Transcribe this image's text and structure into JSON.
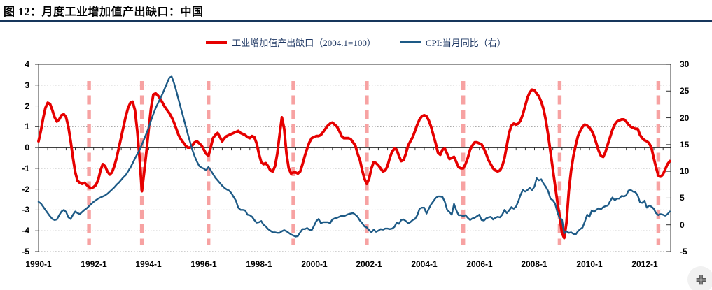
{
  "figure": {
    "title": "图 12：月度工业增加值产出缺口：中国"
  },
  "legend": {
    "items": [
      {
        "label": "工业增加值产出缺口（2004.1=100）",
        "color": "#e60000",
        "thickness": 4
      },
      {
        "label": "CPI:当月同比（右）",
        "color": "#1d5a86",
        "thickness": 2.5
      }
    ]
  },
  "colors": {
    "title_rule": "#16365c",
    "red_series": "#e60000",
    "blue_series": "#1d5a86",
    "event_dash": "#f7a2a2",
    "grid": "#a0a0a0",
    "plot_border": "#595959",
    "zero_line": "#000000"
  },
  "controls": {
    "resize_button_icon": "compress-icon"
  },
  "chart_data": {
    "type": "line",
    "title": "图 12：月度工业增加值产出缺口：中国",
    "frequency": "monthly",
    "start": "1990-01",
    "end": "2012-12",
    "x_axis": {
      "tick_labels": [
        "1990-1",
        "1992-1",
        "1994-1",
        "1996-1",
        "1998-1",
        "2000-1",
        "2002-1",
        "2004-1",
        "2006-1",
        "2008-1",
        "2010-1",
        "2012-1"
      ]
    },
    "left_axis": {
      "range": [
        -5,
        4
      ],
      "tick_step": 1,
      "ticks": [
        "4",
        "3",
        "2",
        "1",
        "0",
        "-1",
        "-2",
        "-3",
        "-4",
        "-5"
      ],
      "series": "工业增加值产出缺口（2004.1=100）"
    },
    "right_axis": {
      "range": [
        -5,
        30
      ],
      "tick_step": 5,
      "ticks": [
        "30",
        "25",
        "20",
        "15",
        "10",
        "5",
        "0",
        "-5"
      ],
      "series": "CPI:当月同比（右）"
    },
    "grid": "horizontal-dotted",
    "legend_position": "top-center",
    "event_lines": {
      "style": "dashed-vertical",
      "color": "#f7a2a2",
      "dates": [
        "1991-11",
        "1993-10",
        "1996-03",
        "1999-04",
        "2001-12",
        "2005-06",
        "2008-12",
        "2012-07"
      ]
    },
    "series": [
      {
        "name": "工业增加值产出缺口（2004.1=100）",
        "axis": "left",
        "color": "#e60000",
        "start": "1990-01",
        "values": [
          0.3,
          0.8,
          1.4,
          1.9,
          2.15,
          2.1,
          1.8,
          1.45,
          1.25,
          1.35,
          1.55,
          1.6,
          1.45,
          1.0,
          0.3,
          -0.5,
          -1.2,
          -1.6,
          -1.7,
          -1.75,
          -1.7,
          -1.8,
          -1.9,
          -1.95,
          -1.9,
          -1.8,
          -1.55,
          -1.1,
          -0.8,
          -0.9,
          -1.15,
          -1.3,
          -1.2,
          -0.9,
          -0.5,
          0.0,
          0.5,
          1.0,
          1.5,
          1.9,
          2.15,
          2.2,
          1.8,
          0.8,
          -0.5,
          -2.1,
          -1.2,
          -0.2,
          0.9,
          1.9,
          2.55,
          2.6,
          2.5,
          2.35,
          2.15,
          1.95,
          1.8,
          1.65,
          1.45,
          1.2,
          0.9,
          0.6,
          0.4,
          0.25,
          0.1,
          0.0,
          0.0,
          0.1,
          0.25,
          0.3,
          0.2,
          0.1,
          -0.1,
          -0.3,
          -0.4,
          0.0,
          0.45,
          0.6,
          0.7,
          0.5,
          0.3,
          0.45,
          0.55,
          0.6,
          0.65,
          0.7,
          0.75,
          0.8,
          0.7,
          0.65,
          0.6,
          0.5,
          0.45,
          0.55,
          0.5,
          0.2,
          -0.3,
          -0.7,
          -0.8,
          -0.75,
          -0.9,
          -1.1,
          -1.15,
          -0.9,
          -0.3,
          0.6,
          1.45,
          0.9,
          -0.3,
          -1.0,
          -1.25,
          -1.2,
          -1.2,
          -1.25,
          -1.15,
          -0.8,
          -0.4,
          -0.05,
          0.25,
          0.45,
          0.5,
          0.55,
          0.55,
          0.6,
          0.75,
          0.9,
          1.05,
          1.15,
          1.2,
          1.1,
          1.0,
          0.8,
          0.55,
          0.45,
          0.45,
          0.45,
          0.4,
          0.25,
          0.1,
          -0.3,
          -0.6,
          -1.1,
          -1.5,
          -1.75,
          -1.5,
          -1.0,
          -0.7,
          -0.75,
          -0.85,
          -1.0,
          -1.15,
          -1.1,
          -0.9,
          -0.5,
          -0.2,
          -0.05,
          -0.1,
          -0.4,
          -0.65,
          -0.6,
          -0.3,
          0.1,
          0.3,
          0.5,
          0.8,
          1.1,
          1.35,
          1.5,
          1.55,
          1.5,
          1.3,
          1.0,
          0.6,
          0.2,
          -0.25,
          -0.35,
          -0.1,
          -0.05,
          -0.3,
          -0.55,
          -0.5,
          -0.45,
          -0.7,
          -0.95,
          -1.0,
          -1.0,
          -0.8,
          -0.5,
          -0.1,
          0.1,
          0.25,
          0.25,
          0.2,
          0.15,
          -0.05,
          -0.3,
          -0.6,
          -0.8,
          -1.0,
          -1.1,
          -1.15,
          -1.1,
          -0.9,
          -0.5,
          0.1,
          0.7,
          1.05,
          1.15,
          1.1,
          1.15,
          1.3,
          1.6,
          2.0,
          2.4,
          2.65,
          2.78,
          2.75,
          2.6,
          2.45,
          2.2,
          1.85,
          1.3,
          0.6,
          -0.2,
          -1.0,
          -1.8,
          -2.6,
          -3.3,
          -4.1,
          -4.35,
          -3.6,
          -2.1,
          -1.1,
          -0.4,
          0.1,
          0.55,
          0.8,
          1.0,
          1.1,
          1.05,
          0.95,
          0.8,
          0.55,
          0.2,
          -0.15,
          -0.4,
          -0.45,
          -0.2,
          0.15,
          0.5,
          0.85,
          1.1,
          1.25,
          1.3,
          1.35,
          1.35,
          1.25,
          1.1,
          1.0,
          0.95,
          0.9,
          0.9,
          0.6,
          0.45,
          0.35,
          0.3,
          0.2,
          0.0,
          -0.5,
          -0.95,
          -1.35,
          -1.4,
          -1.3,
          -1.05,
          -0.8,
          -0.65
        ]
      },
      {
        "name": "CPI:当月同比（右）",
        "axis": "right",
        "color": "#1d5a86",
        "start": "1990-01",
        "values": [
          4.3,
          4.0,
          3.4,
          2.8,
          2.2,
          1.6,
          1.1,
          0.9,
          1.0,
          1.8,
          2.5,
          2.8,
          2.4,
          1.4,
          1.1,
          1.9,
          2.5,
          2.2,
          2.0,
          2.4,
          2.8,
          3.1,
          3.5,
          3.9,
          4.3,
          4.6,
          4.9,
          5.1,
          5.3,
          5.5,
          5.8,
          6.2,
          6.6,
          7.0,
          7.5,
          7.9,
          8.4,
          8.9,
          9.3,
          10.0,
          10.7,
          11.5,
          12.4,
          13.2,
          14.0,
          15.0,
          16.0,
          17.1,
          18.2,
          19.5,
          20.7,
          21.8,
          22.7,
          23.6,
          24.5,
          25.5,
          26.5,
          27.5,
          27.7,
          26.5,
          25.0,
          23.4,
          21.8,
          20.2,
          18.6,
          17.0,
          15.5,
          14.0,
          12.8,
          11.8,
          11.0,
          10.7,
          10.5,
          10.2,
          10.8,
          10.2,
          9.5,
          8.8,
          8.3,
          7.8,
          7.3,
          6.9,
          6.6,
          6.4,
          5.9,
          5.2,
          4.5,
          3.2,
          2.8,
          2.8,
          2.7,
          1.9,
          1.8,
          1.5,
          0.9,
          0.4,
          0.5,
          0.7,
          0.0,
          -0.3,
          -0.8,
          -1.1,
          -1.4,
          -1.4,
          -1.5,
          -1.5,
          -1.2,
          -1.0,
          -1.2,
          -1.5,
          -1.8,
          -2.0,
          -2.2,
          -2.1,
          -1.4,
          -0.8,
          -0.8,
          -0.6,
          -0.9,
          -1.0,
          -0.2,
          0.7,
          1.1,
          0.3,
          0.5,
          0.5,
          0.5,
          0.3,
          1.0,
          1.2,
          1.3,
          1.5,
          1.7,
          1.6,
          1.8,
          2.0,
          2.1,
          2.2,
          1.9,
          1.5,
          0.8,
          0.3,
          -0.3,
          -0.5,
          -1.0,
          -1.4,
          -0.9,
          -1.3,
          -1.1,
          -0.8,
          -0.9,
          -0.7,
          -0.7,
          -0.8,
          -0.7,
          -0.4,
          0.4,
          0.2,
          0.9,
          1.0,
          0.7,
          0.3,
          0.5,
          0.9,
          1.1,
          1.8,
          3.0,
          3.2,
          3.2,
          2.1,
          3.0,
          3.8,
          4.4,
          5.0,
          5.3,
          5.3,
          5.2,
          4.3,
          2.8,
          2.4,
          1.9,
          3.9,
          2.7,
          1.8,
          1.8,
          1.6,
          1.8,
          1.3,
          0.9,
          1.2,
          1.3,
          1.6,
          1.9,
          0.9,
          0.8,
          1.2,
          1.4,
          1.5,
          1.0,
          1.3,
          1.5,
          1.4,
          1.9,
          2.8,
          2.2,
          2.7,
          3.3,
          3.0,
          3.4,
          4.4,
          5.6,
          6.5,
          6.2,
          6.5,
          6.9,
          6.5,
          7.1,
          8.7,
          8.3,
          8.5,
          7.7,
          7.1,
          6.3,
          4.9,
          4.6,
          4.0,
          2.4,
          1.2,
          1.0,
          -1.6,
          -1.2,
          -1.5,
          -1.4,
          -1.7,
          -1.8,
          -1.2,
          -0.8,
          -0.5,
          0.6,
          1.9,
          1.5,
          2.7,
          2.4,
          2.8,
          3.1,
          2.9,
          3.3,
          3.5,
          3.6,
          4.4,
          5.1,
          4.6,
          4.9,
          4.9,
          5.4,
          5.3,
          5.5,
          6.4,
          6.5,
          6.2,
          6.1,
          5.5,
          4.2,
          4.1,
          4.5,
          3.2,
          3.6,
          3.4,
          3.0,
          2.2,
          1.8,
          2.0,
          1.9,
          1.7,
          2.0,
          2.5
        ]
      }
    ]
  }
}
